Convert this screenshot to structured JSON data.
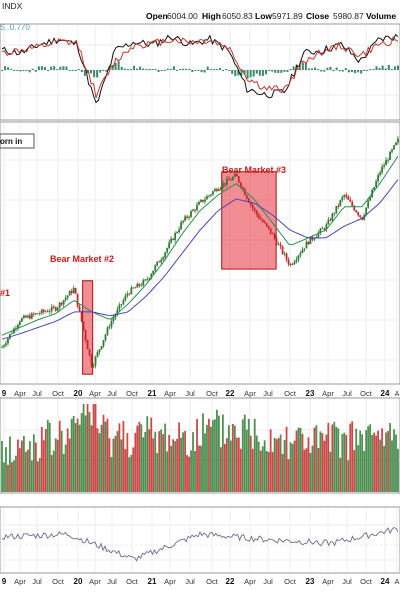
{
  "header": {
    "ticker": "INDX",
    "open_label": "Open",
    "open": "6004.00",
    "high_label": "High",
    "high": "6050.83",
    "low_label": "Low",
    "low": "5971.89",
    "close_label": "Close",
    "close": "5980.87",
    "volume_label": "Volume"
  },
  "indicator_top": {
    "value_text": "S. 0.770",
    "value_color": "#4aa3a3"
  },
  "price_panel": {
    "label_box": "orn in"
  },
  "colors": {
    "up": "#2e7d32",
    "down": "#c62828",
    "ma_short": "#2e8b57",
    "ma_long": "#4a4ab0",
    "highlight": "#e8303d",
    "grid": "#e6e6e6"
  },
  "chart_data": [
    {
      "type": "line",
      "panel": "oscillator-top",
      "x": [
        "19-Jan",
        "19-Apr",
        "19-Jul",
        "19-Oct",
        "20-Jan",
        "20-Apr",
        "20-Jul",
        "20-Oct",
        "21-Jan",
        "21-Apr",
        "21-Jul",
        "21-Oct",
        "22-Jan",
        "22-Apr",
        "22-Jul",
        "22-Oct",
        "23-Jan",
        "23-Apr",
        "23-Jul",
        "23-Oct",
        "24-Jan",
        "24-Apr"
      ],
      "series": [
        {
          "values": [
            60,
            55,
            70,
            80,
            70,
            -40,
            60,
            75,
            70,
            85,
            70,
            80,
            60,
            -10,
            -20,
            -15,
            55,
            60,
            70,
            40,
            80,
            85
          ]
        },
        {
          "values": [
            55,
            60,
            65,
            75,
            72,
            -20,
            40,
            70,
            72,
            80,
            75,
            78,
            65,
            10,
            -10,
            -10,
            40,
            58,
            68,
            50,
            70,
            80
          ]
        }
      ],
      "value_text": "S. 0.770"
    },
    {
      "type": "line",
      "panel": "price",
      "x": [
        "19-Jan",
        "19-Apr",
        "19-Jul",
        "19-Oct",
        "20-Jan",
        "20-Mar",
        "20-Apr",
        "20-Jul",
        "20-Oct",
        "21-Jan",
        "21-Apr",
        "21-Jul",
        "21-Oct",
        "22-Jan",
        "22-Apr",
        "22-Jul",
        "22-Oct",
        "23-Jan",
        "23-Apr",
        "23-Jul",
        "23-Oct",
        "24-Jan",
        "24-Apr"
      ],
      "series": [
        {
          "values": [
            2550,
            2900,
            2980,
            3050,
            3300,
            2300,
            2850,
            3250,
            3400,
            3750,
            4150,
            4400,
            4600,
            4750,
            4300,
            4000,
            3600,
            3900,
            4100,
            4500,
            4200,
            4800,
            5200
          ]
        },
        {
          "values": [
            2700,
            2800,
            2900,
            2980,
            3150,
            3000,
            2900,
            3100,
            3350,
            3650,
            4000,
            4300,
            4500,
            4650,
            4450,
            4150,
            3850,
            3950,
            4050,
            4350,
            4350,
            4650,
            5000
          ]
        },
        {
          "values": [
            2650,
            2720,
            2800,
            2880,
            3000,
            3000,
            2950,
            3000,
            3200,
            3450,
            3750,
            4050,
            4300,
            4450,
            4400,
            4250,
            4050,
            3950,
            3950,
            4100,
            4200,
            4400,
            4700
          ]
        }
      ],
      "annotations": [
        "#1",
        "Bear Market #2",
        "Bear Market #3"
      ],
      "highlights": [
        {
          "label": "Bear Market #2",
          "x_start": "20-Feb",
          "x_end": "20-Mar",
          "y_start": 2200,
          "y_end": 3400
        },
        {
          "label": "Bear Market #3",
          "x_start": "22-Jan",
          "x_end": "22-Oct",
          "y_start": 3550,
          "y_end": 4800
        }
      ]
    },
    {
      "type": "bar",
      "panel": "volume",
      "x": [
        "19",
        "20",
        "21",
        "22",
        "23",
        "24"
      ],
      "series": [
        {
          "values": [
            40,
            60,
            55,
            62,
            50,
            55
          ]
        }
      ]
    },
    {
      "type": "line",
      "panel": "oscillator-bottom",
      "x": [
        "19-Jan",
        "20-Jan",
        "20-Apr",
        "21-Jan",
        "22-Jan",
        "23-Jan",
        "24-Jan"
      ],
      "series": [
        {
          "values": [
            0.45,
            0.6,
            -0.8,
            0.6,
            0.3,
            0.1,
            0.9
          ]
        }
      ]
    }
  ],
  "x_axis_ticks": [
    {
      "label": "9",
      "bold": true
    },
    {
      "label": "Apr",
      "bold": false
    },
    {
      "label": "Jul",
      "bold": false
    },
    {
      "label": "Oct",
      "bold": false
    },
    {
      "label": "20",
      "bold": true
    },
    {
      "label": "Apr",
      "bold": false
    },
    {
      "label": "Jul",
      "bold": false
    },
    {
      "label": "Oct",
      "bold": false
    },
    {
      "label": "21",
      "bold": true
    },
    {
      "label": "Apr",
      "bold": false
    },
    {
      "label": "Jul",
      "bold": false
    },
    {
      "label": "Oct",
      "bold": false
    },
    {
      "label": "22",
      "bold": true
    },
    {
      "label": "Apr",
      "bold": false
    },
    {
      "label": "Jul",
      "bold": false
    },
    {
      "label": "Oct",
      "bold": false
    },
    {
      "label": "23",
      "bold": true
    },
    {
      "label": "Apr",
      "bold": false
    },
    {
      "label": "Jul",
      "bold": false
    },
    {
      "label": "Oct",
      "bold": false
    },
    {
      "label": "24",
      "bold": true
    },
    {
      "label": "A",
      "bold": false
    }
  ],
  "bottom_x_axis_ticks": [
    {
      "label": "9",
      "bold": true
    },
    {
      "label": "Apr",
      "bold": false
    },
    {
      "label": "Jul",
      "bold": false
    },
    {
      "label": "Oct",
      "bold": false
    },
    {
      "label": "20",
      "bold": true
    },
    {
      "label": "Apr",
      "bold": false
    },
    {
      "label": "Jul",
      "bold": false
    },
    {
      "label": "Oct",
      "bold": false
    },
    {
      "label": "21",
      "bold": true
    },
    {
      "label": "Apr",
      "bold": false
    },
    {
      "label": "Jul",
      "bold": false
    },
    {
      "label": "Oct",
      "bold": false
    },
    {
      "label": "22",
      "bold": true
    },
    {
      "label": "Apr",
      "bold": false
    },
    {
      "label": "Jul",
      "bold": false
    },
    {
      "label": "Oct",
      "bold": false
    },
    {
      "label": "23",
      "bold": true
    },
    {
      "label": "Apr",
      "bold": false
    },
    {
      "label": "Jul",
      "bold": false
    },
    {
      "label": "Oct",
      "bold": false
    },
    {
      "label": "24",
      "bold": true
    },
    {
      "label": "A",
      "bold": false
    }
  ]
}
